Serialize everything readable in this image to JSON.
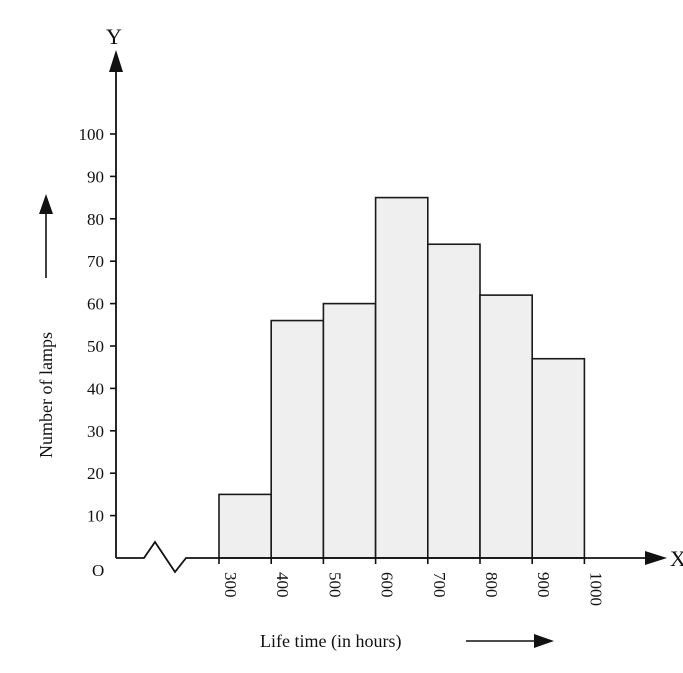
{
  "chart_data": {
    "type": "bar",
    "subtype": "histogram",
    "title": "",
    "xlabel": "Life time (in hours)",
    "ylabel": "Number of lamps",
    "x_axis_letter": "X",
    "y_axis_letter": "Y",
    "origin_label": "O",
    "axis_break_on_x": true,
    "bins": [
      {
        "start": 300,
        "end": 400,
        "value": 15
      },
      {
        "start": 400,
        "end": 500,
        "value": 56
      },
      {
        "start": 500,
        "end": 600,
        "value": 60
      },
      {
        "start": 600,
        "end": 700,
        "value": 85
      },
      {
        "start": 700,
        "end": 800,
        "value": 74
      },
      {
        "start": 800,
        "end": 900,
        "value": 62
      },
      {
        "start": 900,
        "end": 1000,
        "value": 47
      }
    ],
    "x_ticks": [
      "300",
      "400",
      "500",
      "600",
      "700",
      "800",
      "900",
      "1000"
    ],
    "y_ticks": [
      "10",
      "20",
      "30",
      "40",
      "50",
      "60",
      "70",
      "80",
      "90",
      "100"
    ],
    "ylim": [
      0,
      100
    ],
    "grid": false,
    "bar_fill": "#efefef",
    "bar_stroke": "#1a1a1a"
  }
}
